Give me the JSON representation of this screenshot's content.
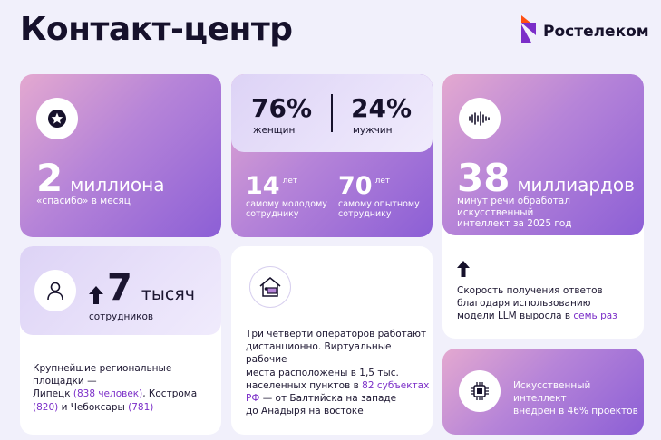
{
  "header": {
    "title": "Контакт-центр",
    "logo_text": "Ростелеком"
  },
  "card_thanks": {
    "value": "2",
    "unit": "миллиона",
    "caption": "«спасибо» в месяц",
    "icon": "star-icon"
  },
  "card_gender": {
    "women_pct": "76%",
    "women_label": "женщин",
    "men_pct": "24%",
    "men_label": "мужчин",
    "young_value": "14",
    "young_unit": "лет",
    "young_caption_1": "самому молодому",
    "young_caption_2": "сотруднику",
    "old_value": "70",
    "old_unit": "лет",
    "old_caption_1": "самому опытному",
    "old_caption_2": "сотруднику"
  },
  "card_speech": {
    "value": "38",
    "unit": "миллиардов",
    "caption_1": "минут речи обработал искусственный",
    "caption_2": "интеллект за 2025 год",
    "icon": "sound-wave-icon",
    "speed_1": "Скорость получения ответов",
    "speed_2": "благодаря использованию",
    "speed_3": "модели LLM выросла в ",
    "speed_hl": "семь раз",
    "arrow_icon": "arrow-up-icon"
  },
  "card_staff": {
    "value": "7",
    "unit": "тысяч",
    "caption": "сотрудников",
    "icon": "person-icon",
    "regions_1": "Крупнейшие региональные площадки —",
    "regions_2a": "Липецк ",
    "regions_2b": "(838 человек)",
    "regions_2c": ", Кострома",
    "regions_3a": "(820)",
    "regions_3b": " и Чебоксары ",
    "regions_3c": "(781)"
  },
  "card_remote": {
    "icon": "home-office-icon",
    "line_1": "Три четверти операторов работают",
    "line_2": "дистанционно. Виртуальные рабочие",
    "line_3": "места расположены в 1,5 тыс.",
    "line_4a": "населенных пунктов в ",
    "line_4b": "82 субъектах",
    "line_5a": "РФ",
    "line_5b": " — от Балтийска на западе",
    "line_6": "до Анадыря на востоке"
  },
  "card_ai": {
    "icon": "chip-icon",
    "line_1": "Искусственный интеллект",
    "line_2": "внедрен в 46% проектов"
  },
  "colors": {
    "accent": "#7b2ec8",
    "gradient_start": "#e4a9d0",
    "gradient_end": "#8c5fd6"
  }
}
